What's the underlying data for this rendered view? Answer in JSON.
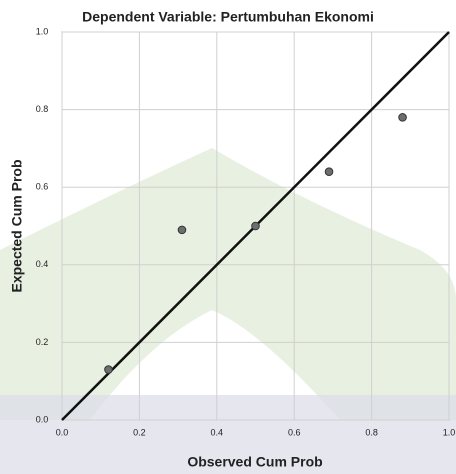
{
  "chart_data": {
    "type": "scatter",
    "title": "Dependent Variable: Pertumbuhan Ekonomi",
    "x_label": "Observed Cum Prob",
    "y_label": "Expected Cum Prob",
    "x": [
      0.12,
      0.31,
      0.5,
      0.69,
      0.88
    ],
    "values": [
      0.13,
      0.49,
      0.5,
      0.64,
      0.78
    ],
    "color": "#6e6e6e",
    "xlim": [
      0,
      1
    ],
    "ylim": [
      0,
      1
    ],
    "xticks": [
      {
        "value": 0,
        "label": "0.0"
      },
      0.2,
      0.4,
      0.6,
      0.8,
      {
        "value": 1,
        "label": "1.0"
      }
    ],
    "yticks": [
      {
        "value": 0,
        "label": "0.0"
      },
      0.2,
      0.4,
      0.6,
      0.8,
      {
        "value": 1,
        "label": "1.0"
      }
    ],
    "grid": true,
    "reference_line": true
  }
}
